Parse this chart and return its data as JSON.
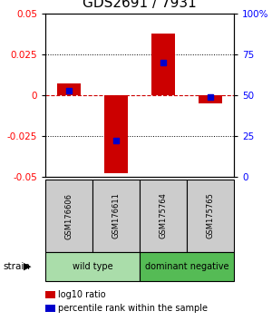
{
  "title": "GDS2691 / 7931",
  "samples": [
    "GSM176606",
    "GSM176611",
    "GSM175764",
    "GSM175765"
  ],
  "log10_ratio": [
    0.007,
    -0.048,
    0.038,
    -0.005
  ],
  "percentile_rank": [
    0.53,
    0.22,
    0.7,
    0.487
  ],
  "ylim": [
    -0.05,
    0.05
  ],
  "yticks_left": [
    -0.05,
    -0.025,
    0,
    0.025,
    0.05
  ],
  "yticks_right": [
    0,
    25,
    50,
    75,
    100
  ],
  "bar_color": "#cc0000",
  "dot_color": "#0000cc",
  "zero_line_color": "#cc0000",
  "group_info": [
    {
      "start": 0,
      "end": 2,
      "label": "wild type",
      "color": "#aaddaa"
    },
    {
      "start": 2,
      "end": 4,
      "label": "dominant negative",
      "color": "#55bb55"
    }
  ],
  "strain_label": "strain",
  "legend_ratio_label": "log10 ratio",
  "legend_pct_label": "percentile rank within the sample",
  "title_fontsize": 11,
  "tick_fontsize": 7.5,
  "sample_box_color": "#cccccc"
}
